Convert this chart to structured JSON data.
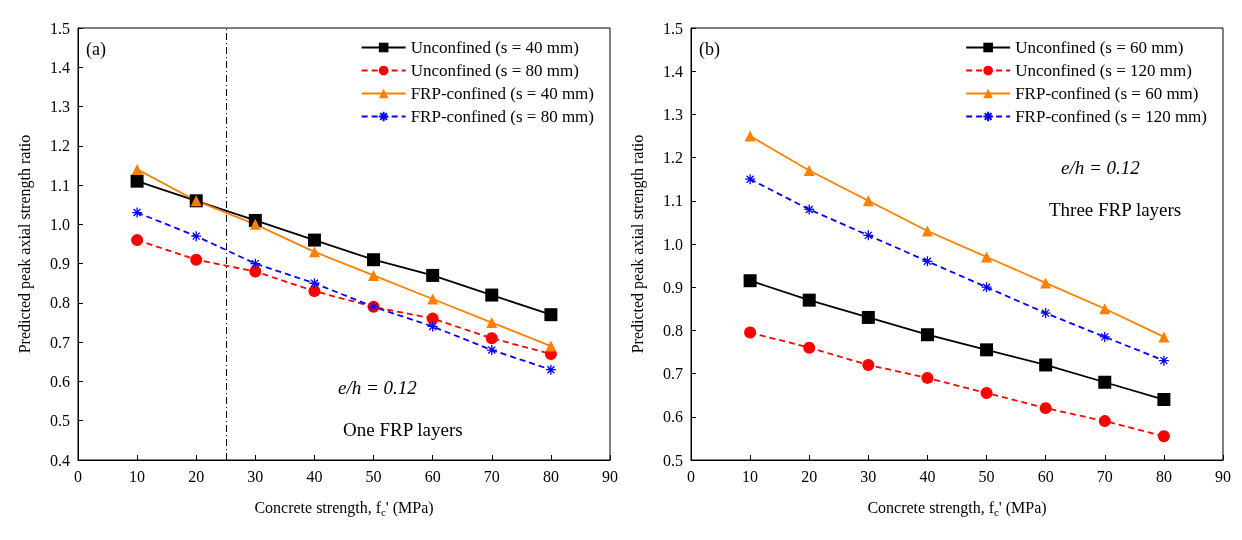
{
  "chart_data": [
    {
      "type": "line",
      "xlabel": "Concrete strength, f$_{c}$' (MPa)",
      "ylabel": "Predicted peak axial strength ratio",
      "annotations": [
        "(a)",
        "e/h = 0.12",
        "One FRP layers"
      ],
      "x": [
        10,
        20,
        30,
        40,
        50,
        60,
        70,
        80
      ],
      "xlim": [
        0,
        90
      ],
      "xticks": [
        0,
        10,
        20,
        30,
        40,
        50,
        60,
        70,
        80,
        90
      ],
      "ylim": [
        0.4,
        1.5
      ],
      "yticks": [
        0.4,
        0.5,
        0.6,
        0.7,
        0.8,
        0.9,
        {
          "value": 1,
          "label": "1.0"
        },
        1.1,
        1.2,
        1.3,
        1.4,
        1.5
      ],
      "grid": false,
      "legend": "top right",
      "ref_lines": [
        {
          "axis": "x",
          "value": 25,
          "line_style": "dashed",
          "color": "#000000"
        }
      ],
      "series": [
        {
          "name": "Unconfined (s = 40 mm)",
          "color": "#000000",
          "marker": "square",
          "line_style": "solid",
          "values": [
            1.11,
            1.06,
            1.01,
            0.96,
            0.91,
            0.87,
            0.82,
            0.77
          ]
        },
        {
          "name": "Unconfined (s = 80 mm)",
          "color": "#ff0000",
          "marker": "circle",
          "line_style": "dashed",
          "values": [
            0.96,
            0.91,
            0.88,
            0.83,
            0.79,
            0.76,
            0.71,
            0.67
          ]
        },
        {
          "name": "FRP-confined (s = 40 mm)",
          "color": "#ff8000",
          "marker": "triangle",
          "line_style": "solid",
          "values": [
            1.14,
            1.06,
            1.0,
            0.93,
            0.87,
            0.81,
            0.75,
            0.69
          ]
        },
        {
          "name": "FRP-confined (s = 80 mm)",
          "color": "#0000ff",
          "marker": "cross",
          "line_style": "dashed",
          "values": [
            1.03,
            0.97,
            0.9,
            0.85,
            0.79,
            0.74,
            0.68,
            0.63
          ]
        }
      ]
    },
    {
      "type": "line",
      "xlabel": "Concrete strength, f$_{c}$' (MPa)",
      "ylabel": "Predicted peak axial strength ratio",
      "annotations": [
        "(b)",
        "e/h = 0.12",
        "Three FRP layers"
      ],
      "x": [
        10,
        20,
        30,
        40,
        50,
        60,
        70,
        80
      ],
      "xlim": [
        0,
        90
      ],
      "xticks": [
        0,
        10,
        20,
        30,
        40,
        50,
        60,
        70,
        80,
        90
      ],
      "ylim": [
        0.5,
        1.5
      ],
      "yticks": [
        0.5,
        0.6,
        0.7,
        0.8,
        0.9,
        {
          "value": 1,
          "label": "1.0"
        },
        1.1,
        1.2,
        1.3,
        1.4,
        1.5
      ],
      "grid": false,
      "legend": "top right",
      "series": [
        {
          "name": "Unconfined (s = 60 mm)",
          "color": "#000000",
          "marker": "square",
          "line_style": "solid",
          "values": [
            0.915,
            0.87,
            0.83,
            0.79,
            0.755,
            0.72,
            0.68,
            0.64
          ]
        },
        {
          "name": "Unconfined (s = 120 mm)",
          "color": "#ff0000",
          "marker": "circle",
          "line_style": "dashed",
          "values": [
            0.795,
            0.76,
            0.72,
            0.69,
            0.655,
            0.62,
            0.59,
            0.555
          ]
        },
        {
          "name": "FRP-confined (s = 60 mm)",
          "color": "#ff8000",
          "marker": "triangle",
          "line_style": "solid",
          "values": [
            1.25,
            1.17,
            1.1,
            1.03,
            0.97,
            0.91,
            0.85,
            0.785
          ]
        },
        {
          "name": "FRP-confined (s = 120 mm)",
          "color": "#0000ff",
          "marker": "cross",
          "line_style": "dashed",
          "values": [
            1.15,
            1.08,
            1.02,
            0.96,
            0.9,
            0.84,
            0.785,
            0.73
          ]
        }
      ]
    }
  ]
}
